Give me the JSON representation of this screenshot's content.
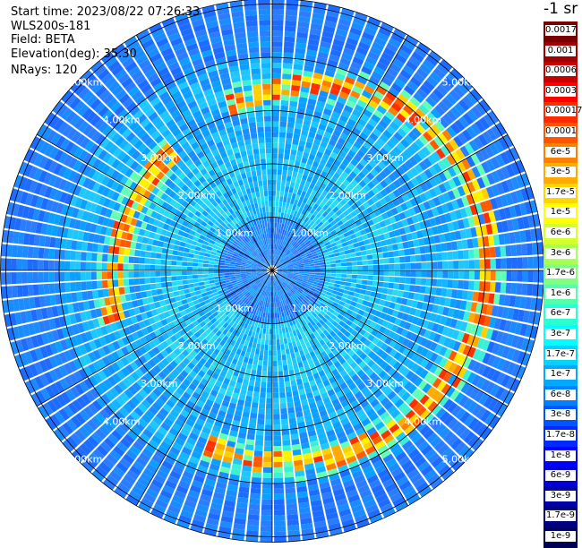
{
  "header": {
    "start_time": "Start time: 2023/08/22 07:26:33",
    "instrument": "WLS200s-181",
    "field": "Field: BETA",
    "elevation": "Elevation(deg): 35.30",
    "nrays": "NRays: 120"
  },
  "colorbar": {
    "title": "-1 sr",
    "labels": [
      "0.0017",
      "0.001",
      "0.0006",
      "0.0003",
      "0.00017",
      "0.0001",
      "6e-5",
      "3e-5",
      "1.7e-5",
      "1e-5",
      "6e-6",
      "3e-6",
      "1.7e-6",
      "1e-6",
      "6e-7",
      "3e-7",
      "1.7e-7",
      "1e-7",
      "6e-8",
      "3e-8",
      "1.7e-8",
      "1e-8",
      "6e-9",
      "3e-9",
      "1.7e-9",
      "1e-9"
    ],
    "colors": [
      "#7a0000",
      "#a00000",
      "#c80000",
      "#ff0000",
      "#ff2a00",
      "#ff5500",
      "#ff8000",
      "#ffaa00",
      "#ffd400",
      "#ffff00",
      "#d4ff2a",
      "#aaff55",
      "#80ff80",
      "#55ffaa",
      "#2affd4",
      "#00ffff",
      "#00d4ff",
      "#00aaff",
      "#0080ff",
      "#0055ff",
      "#002aff",
      "#0000ff",
      "#0000d4",
      "#0000aa",
      "#000080",
      "#000055"
    ]
  },
  "chart_data": {
    "type": "heatmap",
    "projection": "polar PPI",
    "field": "BETA",
    "units": "sr-1",
    "elevation_deg": 35.3,
    "n_rays": 120,
    "range_ring_labels": [
      "1.00km",
      "2.00km",
      "3.00km",
      "4.00km",
      "5.00km"
    ],
    "ring_ranges_km": [
      1,
      2,
      3,
      4,
      5
    ],
    "max_range_km": 5.1,
    "spoke_angles_deg": [
      0,
      30,
      60,
      90,
      120,
      150,
      180,
      210,
      240,
      270,
      300,
      330
    ],
    "color_scale": "log",
    "value_range": [
      1e-09,
      0.0017
    ]
  }
}
